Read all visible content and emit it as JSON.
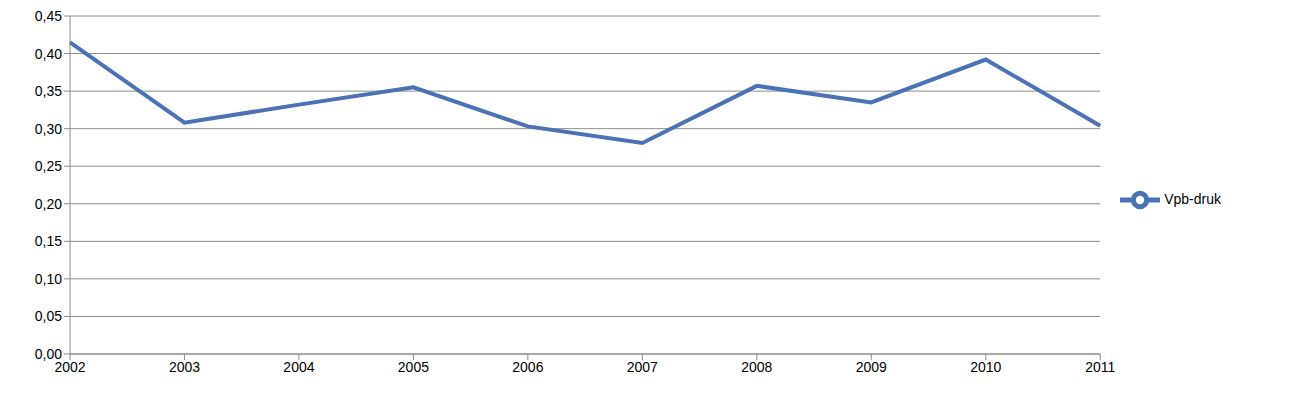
{
  "chart_data": {
    "type": "line",
    "categories": [
      "2002",
      "2003",
      "2004",
      "2005",
      "2006",
      "2007",
      "2008",
      "2009",
      "2010",
      "2011"
    ],
    "series": [
      {
        "name": "Vpb-druk",
        "color": "#4a72b5",
        "values": [
          0.415,
          0.308,
          0.332,
          0.355,
          0.303,
          0.281,
          0.357,
          0.335,
          0.392,
          0.304
        ],
        "marker": "none",
        "line_style": "solid"
      }
    ],
    "ylim": [
      0,
      0.45
    ],
    "yticks": [
      {
        "value": 0,
        "label": "0,00"
      },
      {
        "value": 0.05,
        "label": "0,05"
      },
      {
        "value": 0.1,
        "label": "0,10"
      },
      {
        "value": 0.15,
        "label": "0,15"
      },
      {
        "value": 0.2,
        "label": "0,20"
      },
      {
        "value": 0.25,
        "label": "0,25"
      },
      {
        "value": 0.3,
        "label": "0,30"
      },
      {
        "value": 0.35,
        "label": "0,35"
      },
      {
        "value": 0.4,
        "label": "0,40"
      },
      {
        "value": 0.45,
        "label": "0,45"
      }
    ],
    "grid": true,
    "legend": "right"
  }
}
